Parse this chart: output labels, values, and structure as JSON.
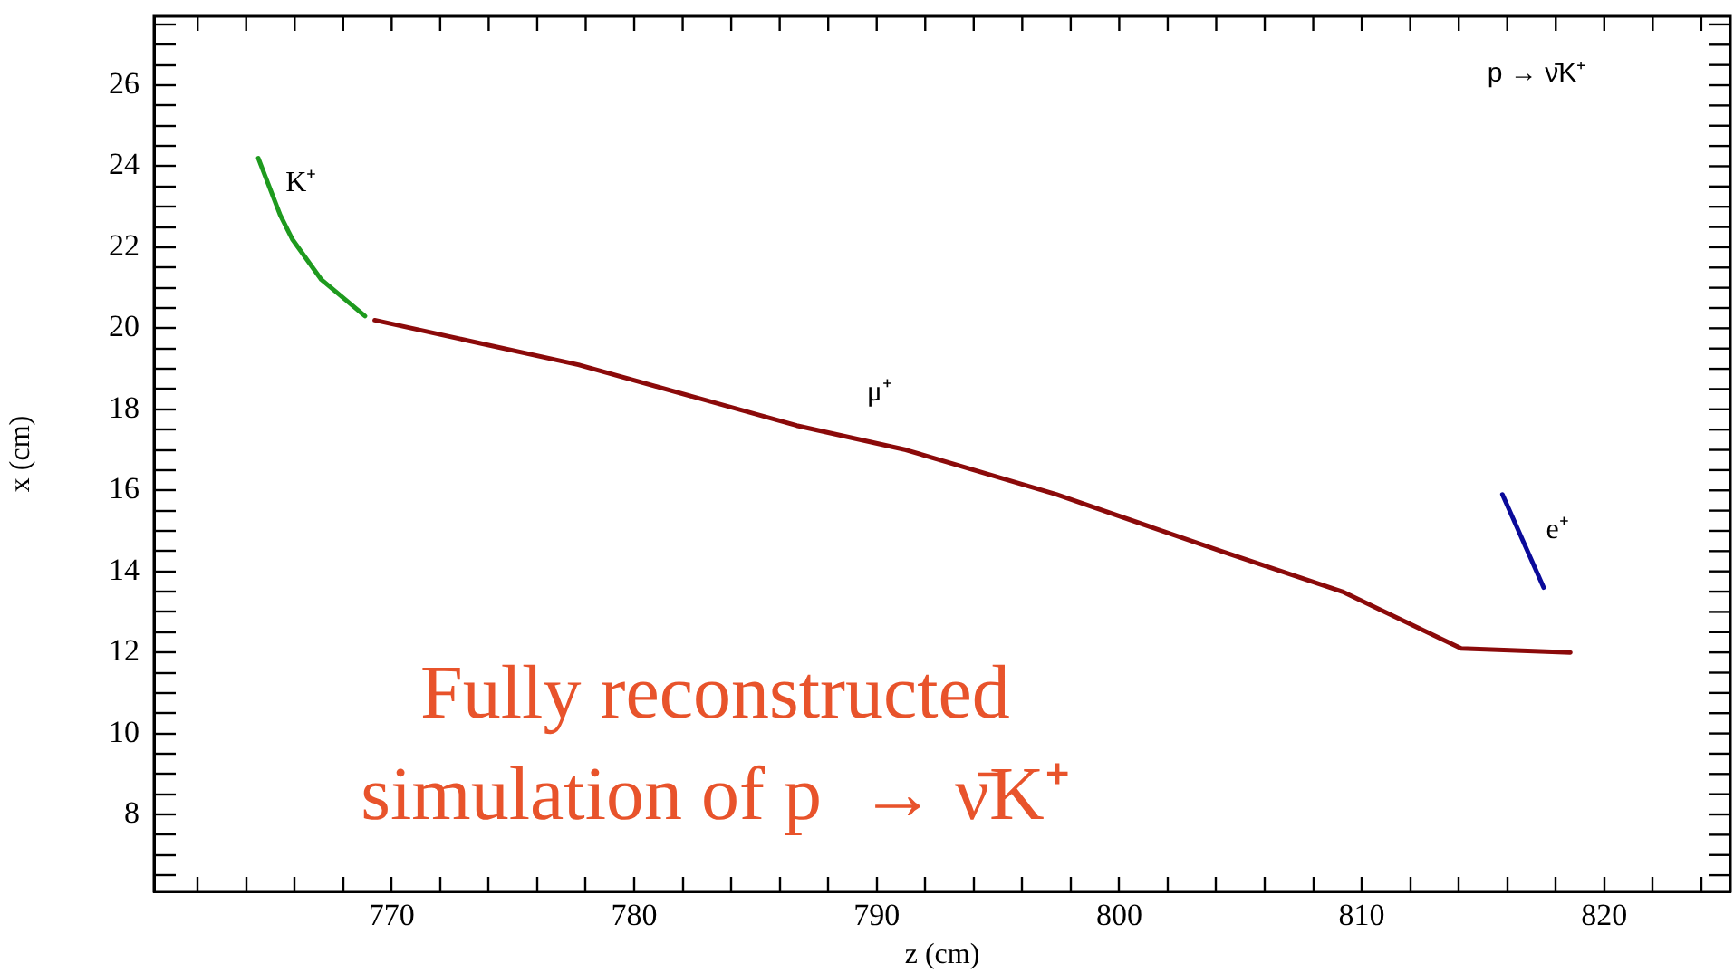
{
  "chart_data": {
    "type": "line",
    "xlabel": "z (cm)",
    "ylabel": "x (cm)",
    "marker": "none",
    "grid": false,
    "legend": false,
    "xlim": [
      760.2,
      825.2
    ],
    "ylim": [
      6.1,
      27.7
    ],
    "xticks": [
      {
        "value": 762,
        "label": null
      },
      {
        "value": 764,
        "label": null
      },
      {
        "value": 766,
        "label": null
      },
      {
        "value": 768,
        "label": null
      },
      770,
      {
        "value": 772,
        "label": null
      },
      {
        "value": 774,
        "label": null
      },
      {
        "value": 776,
        "label": null
      },
      {
        "value": 778,
        "label": null
      },
      780,
      {
        "value": 782,
        "label": null
      },
      {
        "value": 784,
        "label": null
      },
      {
        "value": 786,
        "label": null
      },
      {
        "value": 788,
        "label": null
      },
      790,
      {
        "value": 792,
        "label": null
      },
      {
        "value": 794,
        "label": null
      },
      {
        "value": 796,
        "label": null
      },
      {
        "value": 798,
        "label": null
      },
      800,
      {
        "value": 802,
        "label": null
      },
      {
        "value": 804,
        "label": null
      },
      {
        "value": 806,
        "label": null
      },
      {
        "value": 808,
        "label": null
      },
      810,
      {
        "value": 812,
        "label": null
      },
      {
        "value": 814,
        "label": null
      },
      {
        "value": 816,
        "label": null
      },
      {
        "value": 818,
        "label": null
      },
      820,
      {
        "value": 822,
        "label": null
      },
      {
        "value": 824,
        "label": null
      }
    ],
    "yticks": [
      {
        "value": 6.5,
        "label": null
      },
      {
        "value": 7,
        "label": null
      },
      {
        "value": 7.5,
        "label": null
      },
      8,
      {
        "value": 8.5,
        "label": null
      },
      {
        "value": 9,
        "label": null
      },
      {
        "value": 9.5,
        "label": null
      },
      10,
      {
        "value": 10.5,
        "label": null
      },
      {
        "value": 11,
        "label": null
      },
      {
        "value": 11.5,
        "label": null
      },
      12,
      {
        "value": 12.5,
        "label": null
      },
      {
        "value": 13,
        "label": null
      },
      {
        "value": 13.5,
        "label": null
      },
      14,
      {
        "value": 14.5,
        "label": null
      },
      {
        "value": 15,
        "label": null
      },
      {
        "value": 15.5,
        "label": null
      },
      16,
      {
        "value": 16.5,
        "label": null
      },
      {
        "value": 17,
        "label": null
      },
      {
        "value": 17.5,
        "label": null
      },
      18,
      {
        "value": 18.5,
        "label": null
      },
      {
        "value": 19,
        "label": null
      },
      {
        "value": 19.5,
        "label": null
      },
      20,
      {
        "value": 20.5,
        "label": null
      },
      {
        "value": 21,
        "label": null
      },
      {
        "value": 21.5,
        "label": null
      },
      22,
      {
        "value": 22.5,
        "label": null
      },
      {
        "value": 23,
        "label": null
      },
      {
        "value": 23.5,
        "label": null
      },
      24,
      {
        "value": 24.5,
        "label": null
      },
      {
        "value": 25,
        "label": null
      },
      {
        "value": 25.5,
        "label": null
      },
      26,
      {
        "value": 26.5,
        "label": null
      },
      {
        "value": 27,
        "label": null
      },
      {
        "value": 27.5,
        "label": null
      }
    ],
    "series": [
      {
        "color": "#1e9a1e",
        "x": [
          764.5,
          765.4,
          765.9,
          767.1,
          768.9
        ],
        "values": [
          24.2,
          22.8,
          22.2,
          21.2,
          20.3
        ]
      },
      {
        "color": "#8b0a0a",
        "x": [
          769.3,
          777.7,
          786.7,
          791.2,
          797.4,
          804.2,
          809.2,
          814.1,
          818.6
        ],
        "values": [
          20.2,
          19.1,
          17.6,
          17.0,
          15.9,
          14.5,
          13.5,
          12.1,
          12.0
        ]
      },
      {
        "color": "#0a0a9a",
        "x": [
          815.8,
          817.5
        ],
        "values": [
          15.9,
          13.6
        ]
      }
    ],
    "annotations": [
      "p → ν̄K⁺",
      "Fully reconstructed\nsimulation of p  → ν̄K⁺",
      "K⁺",
      "μ⁺",
      "e⁺"
    ]
  }
}
